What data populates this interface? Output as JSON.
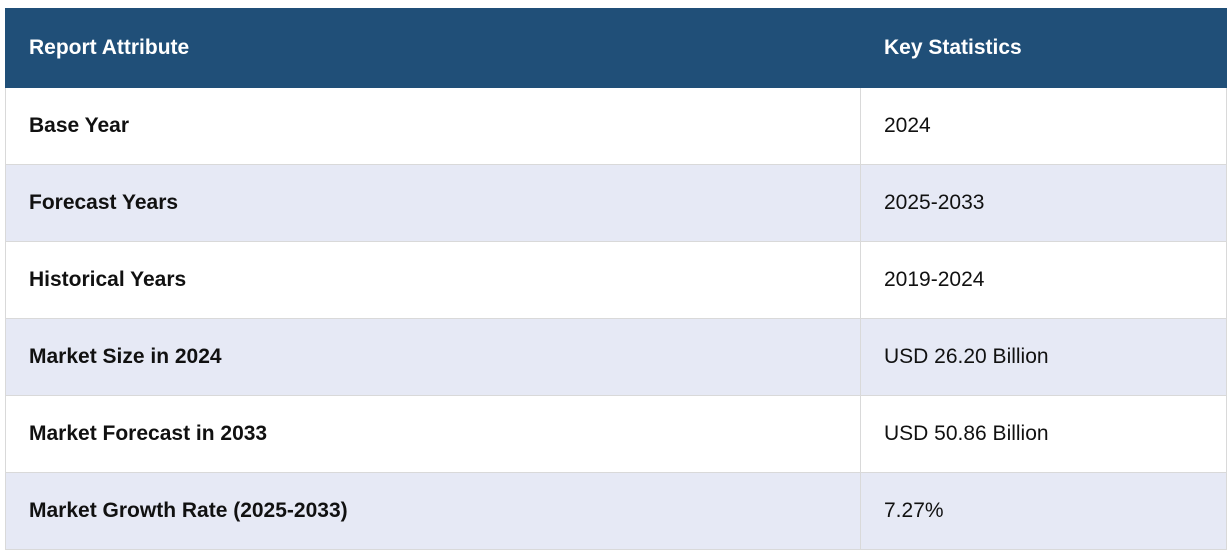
{
  "table": {
    "headers": [
      "Report Attribute",
      "Key Statistics"
    ],
    "rows": [
      {
        "attribute": "Base Year",
        "value": "2024"
      },
      {
        "attribute": "Forecast Years",
        "value": "2025-2033"
      },
      {
        "attribute": "Historical Years",
        "value": "2019-2024"
      },
      {
        "attribute": "Market Size in 2024",
        "value": "USD 26.20 Billion"
      },
      {
        "attribute": "Market Forecast in 2033",
        "value": "USD 50.86 Billion"
      },
      {
        "attribute": "Market Growth Rate (2025-2033)",
        "value": "7.27%"
      }
    ]
  },
  "colors": {
    "header_bg": "#204f78",
    "header_text": "#ffffff",
    "row_alt_bg": "#e6e9f5",
    "row_bg": "#ffffff"
  }
}
